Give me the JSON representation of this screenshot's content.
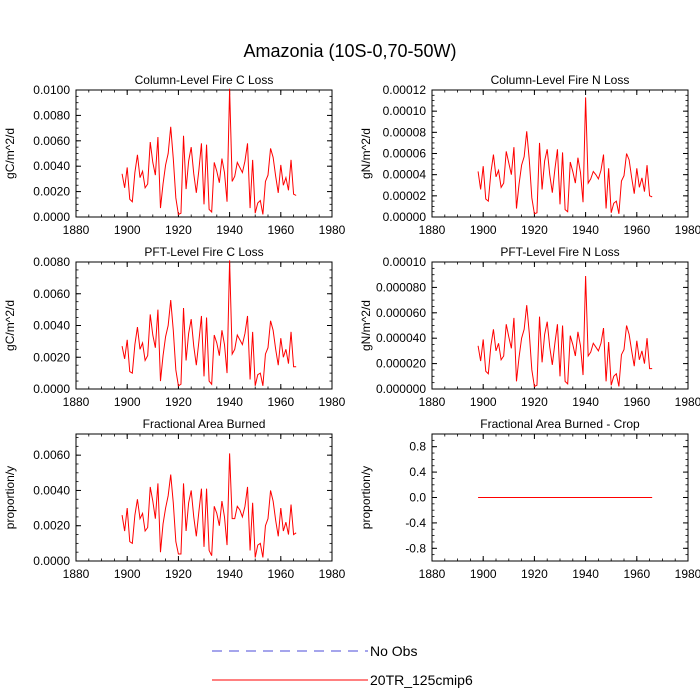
{
  "figure": {
    "title": "Amazonia (10S-0,70-50W)",
    "series_color": "#ff0000",
    "obs_color": "#4b4bd8"
  },
  "legend": {
    "items": [
      {
        "label": "No Obs",
        "style": "dashed",
        "color": "#4b4bd8"
      },
      {
        "label": "20TR_125cmip6",
        "style": "solid",
        "color": "#ff0000"
      }
    ]
  },
  "chart_data": [
    {
      "type": "line",
      "title": "Column-Level Fire C Loss",
      "xlabel": "",
      "ylabel": "gC/m^2/d",
      "xlim": [
        1880,
        1980
      ],
      "ylim": [
        0,
        0.01
      ],
      "xticks": [
        "1880",
        "1900",
        "1920",
        "1940",
        "1960",
        "1980"
      ],
      "yticks": [
        "0.0000",
        "0.0020",
        "0.0040",
        "0.0060",
        "0.0080",
        "0.0100"
      ],
      "x": [
        1898,
        1899,
        1900,
        1901,
        1902,
        1903,
        1904,
        1905,
        1906,
        1907,
        1908,
        1909,
        1910,
        1911,
        1912,
        1913,
        1914,
        1915,
        1916,
        1917,
        1918,
        1919,
        1920,
        1921,
        1922,
        1923,
        1924,
        1925,
        1926,
        1927,
        1928,
        1929,
        1930,
        1931,
        1932,
        1933,
        1934,
        1935,
        1936,
        1937,
        1938,
        1939,
        1940,
        1941,
        1942,
        1943,
        1944,
        1945,
        1946,
        1947,
        1948,
        1949,
        1950,
        1951,
        1952,
        1953,
        1954,
        1955,
        1956,
        1957,
        1958,
        1959,
        1960,
        1961,
        1962,
        1963,
        1964,
        1965,
        1966
      ],
      "series": [
        {
          "name": "20TR_125cmip6",
          "values": [
            0.0034,
            0.0023,
            0.0039,
            0.0014,
            0.0012,
            0.0035,
            0.0049,
            0.0031,
            0.0036,
            0.0023,
            0.0026,
            0.0059,
            0.0043,
            0.0033,
            0.0063,
            0.0007,
            0.0026,
            0.0041,
            0.005,
            0.0071,
            0.0046,
            0.0015,
            0.0002,
            0.0003,
            0.0064,
            0.0022,
            0.0044,
            0.0055,
            0.0034,
            0.0019,
            0.0037,
            0.0058,
            0.001,
            0.0057,
            0.0006,
            0.0004,
            0.0043,
            0.0036,
            0.0027,
            0.0046,
            0.0035,
            0.0012,
            0.0101,
            0.0028,
            0.0032,
            0.0043,
            0.0039,
            0.0035,
            0.0044,
            0.0058,
            0.0007,
            0.0045,
            0.0003,
            0.0011,
            0.0013,
            0.0002,
            0.0028,
            0.0033,
            0.0054,
            0.0047,
            0.0032,
            0.0019,
            0.0041,
            0.0025,
            0.0031,
            0.0021,
            0.0045,
            0.0018,
            0.0017
          ]
        }
      ]
    },
    {
      "type": "line",
      "title": "Column-Level Fire N Loss",
      "xlabel": "",
      "ylabel": "gN/m^2/d",
      "xlim": [
        1880,
        1980
      ],
      "ylim": [
        0,
        0.00012
      ],
      "xticks": [
        "1880",
        "1900",
        "1920",
        "1940",
        "1960",
        "1980"
      ],
      "yticks": [
        "0.00000",
        "0.00002",
        "0.00004",
        "0.00006",
        "0.00008",
        "0.00010",
        "0.00012"
      ],
      "x": [
        1898,
        1899,
        1900,
        1901,
        1902,
        1903,
        1904,
        1905,
        1906,
        1907,
        1908,
        1909,
        1910,
        1911,
        1912,
        1913,
        1914,
        1915,
        1916,
        1917,
        1918,
        1919,
        1920,
        1921,
        1922,
        1923,
        1924,
        1925,
        1926,
        1927,
        1928,
        1929,
        1930,
        1931,
        1932,
        1933,
        1934,
        1935,
        1936,
        1937,
        1938,
        1939,
        1940,
        1941,
        1942,
        1943,
        1944,
        1945,
        1946,
        1947,
        1948,
        1949,
        1950,
        1951,
        1952,
        1953,
        1954,
        1955,
        1956,
        1957,
        1958,
        1959,
        1960,
        1961,
        1962,
        1963,
        1964,
        1965,
        1966
      ],
      "series": [
        {
          "name": "20TR_125cmip6",
          "values": [
            4.3e-05,
            2.6e-05,
            4.8e-05,
            1.7e-05,
            1.5e-05,
            4.2e-05,
            5.9e-05,
            3.8e-05,
            4.4e-05,
            2.8e-05,
            3.2e-05,
            6.2e-05,
            5.1e-05,
            4e-05,
            6.6e-05,
            8e-06,
            3.1e-05,
            4.9e-05,
            5.7e-05,
            8.1e-05,
            5.4e-05,
            1.8e-05,
            3e-06,
            4e-06,
            7e-05,
            2.6e-05,
            5.3e-05,
            6.4e-05,
            4e-05,
            2.3e-05,
            4.5e-05,
            6.4e-05,
            1.2e-05,
            6.1e-05,
            7e-06,
            5e-06,
            5.2e-05,
            4.3e-05,
            3.2e-05,
            5.6e-05,
            4.2e-05,
            1.4e-05,
            0.000113,
            3.2e-05,
            3.6e-05,
            4.3e-05,
            4e-05,
            3.6e-05,
            4.4e-05,
            5.9e-05,
            8e-06,
            4.6e-05,
            4e-06,
            1.3e-05,
            1.5e-05,
            3e-06,
            3.4e-05,
            3.9e-05,
            6e-05,
            5.4e-05,
            3.7e-05,
            2.2e-05,
            4.6e-05,
            2.8e-05,
            3.7e-05,
            2.4e-05,
            4.9e-05,
            2e-05,
            1.9e-05
          ]
        }
      ]
    },
    {
      "type": "line",
      "title": "PFT-Level Fire C Loss",
      "xlabel": "",
      "ylabel": "gC/m^2/d",
      "xlim": [
        1880,
        1980
      ],
      "ylim": [
        0,
        0.008
      ],
      "xticks": [
        "1880",
        "1900",
        "1920",
        "1940",
        "1960",
        "1980"
      ],
      "yticks": [
        "0.0000",
        "0.0020",
        "0.0040",
        "0.0060",
        "0.0080"
      ],
      "x": [
        1898,
        1899,
        1900,
        1901,
        1902,
        1903,
        1904,
        1905,
        1906,
        1907,
        1908,
        1909,
        1910,
        1911,
        1912,
        1913,
        1914,
        1915,
        1916,
        1917,
        1918,
        1919,
        1920,
        1921,
        1922,
        1923,
        1924,
        1925,
        1926,
        1927,
        1928,
        1929,
        1930,
        1931,
        1932,
        1933,
        1934,
        1935,
        1936,
        1937,
        1938,
        1939,
        1940,
        1941,
        1942,
        1943,
        1944,
        1945,
        1946,
        1947,
        1948,
        1949,
        1950,
        1951,
        1952,
        1953,
        1954,
        1955,
        1956,
        1957,
        1958,
        1959,
        1960,
        1961,
        1962,
        1963,
        1964,
        1965,
        1966
      ],
      "series": [
        {
          "name": "20TR_125cmip6",
          "values": [
            0.0027,
            0.0019,
            0.0031,
            0.0011,
            0.001,
            0.0028,
            0.0039,
            0.0025,
            0.0029,
            0.0018,
            0.0021,
            0.0047,
            0.0034,
            0.0026,
            0.005,
            0.0005,
            0.0021,
            0.0033,
            0.004,
            0.0056,
            0.0037,
            0.0012,
            0.0002,
            0.0003,
            0.0051,
            0.0018,
            0.0035,
            0.0044,
            0.0027,
            0.0015,
            0.003,
            0.0046,
            0.0008,
            0.0045,
            0.0005,
            0.0003,
            0.0034,
            0.0029,
            0.0021,
            0.0037,
            0.0028,
            0.001,
            0.0081,
            0.0022,
            0.0025,
            0.0034,
            0.0031,
            0.0028,
            0.0035,
            0.0046,
            0.0006,
            0.0036,
            0.0002,
            0.0009,
            0.001,
            0.0002,
            0.0022,
            0.0026,
            0.0043,
            0.0037,
            0.0025,
            0.0015,
            0.0032,
            0.002,
            0.0025,
            0.0016,
            0.0036,
            0.0014,
            0.0014
          ]
        }
      ]
    },
    {
      "type": "line",
      "title": "PFT-Level Fire N Loss",
      "xlabel": "",
      "ylabel": "gN/m^2/d",
      "xlim": [
        1880,
        1980
      ],
      "ylim": [
        0,
        0.0001
      ],
      "xticks": [
        "1880",
        "1900",
        "1920",
        "1940",
        "1960",
        "1980"
      ],
      "yticks": [
        "0.000000",
        "0.000020",
        "0.000040",
        "0.000060",
        "0.000080",
        "0.00010"
      ],
      "x": [
        1898,
        1899,
        1900,
        1901,
        1902,
        1903,
        1904,
        1905,
        1906,
        1907,
        1908,
        1909,
        1910,
        1911,
        1912,
        1913,
        1914,
        1915,
        1916,
        1917,
        1918,
        1919,
        1920,
        1921,
        1922,
        1923,
        1924,
        1925,
        1926,
        1927,
        1928,
        1929,
        1930,
        1931,
        1932,
        1933,
        1934,
        1935,
        1936,
        1937,
        1938,
        1939,
        1940,
        1941,
        1942,
        1943,
        1944,
        1945,
        1946,
        1947,
        1948,
        1949,
        1950,
        1951,
        1952,
        1953,
        1954,
        1955,
        1956,
        1957,
        1958,
        1959,
        1960,
        1961,
        1962,
        1963,
        1964,
        1965,
        1966
      ],
      "series": [
        {
          "name": "20TR_125cmip6",
          "values": [
            3.4e-05,
            2.2e-05,
            3.9e-05,
            1.4e-05,
            1.2e-05,
            3.4e-05,
            4.7e-05,
            3e-05,
            3.6e-05,
            2.3e-05,
            2.6e-05,
            5.1e-05,
            4.1e-05,
            3.2e-05,
            5.6e-05,
            6e-06,
            2.5e-05,
            4e-05,
            4.7e-05,
            6.6e-05,
            4.4e-05,
            1.5e-05,
            2e-06,
            3e-06,
            5.7e-05,
            2.1e-05,
            4.3e-05,
            5.3e-05,
            3.3e-05,
            1.9e-05,
            3.6e-05,
            5.1e-05,
            1e-05,
            5e-05,
            6e-06,
            4e-06,
            4.2e-05,
            3.5e-05,
            2.6e-05,
            4.5e-05,
            3.4e-05,
            1.1e-05,
            8.9e-05,
            2.6e-05,
            2.9e-05,
            3.6e-05,
            3.3e-05,
            3e-05,
            3.6e-05,
            4.8e-05,
            6e-06,
            3.7e-05,
            3e-06,
            1e-05,
            1.2e-05,
            2e-06,
            2.7e-05,
            3.1e-05,
            5e-05,
            4.3e-05,
            3e-05,
            1.8e-05,
            3.8e-05,
            2.3e-05,
            3e-05,
            2e-05,
            4e-05,
            1.6e-05,
            1.6e-05
          ]
        }
      ]
    },
    {
      "type": "line",
      "title": "Fractional Area Burned",
      "xlabel": "",
      "ylabel": "proportion/y",
      "xlim": [
        1880,
        1980
      ],
      "ylim": [
        0,
        0.0072
      ],
      "xticks": [
        "1880",
        "1900",
        "1920",
        "1940",
        "1960",
        "1980"
      ],
      "yticks": [
        "0.0000",
        "0.0020",
        "0.0040",
        "0.0060"
      ],
      "x": [
        1898,
        1899,
        1900,
        1901,
        1902,
        1903,
        1904,
        1905,
        1906,
        1907,
        1908,
        1909,
        1910,
        1911,
        1912,
        1913,
        1914,
        1915,
        1916,
        1917,
        1918,
        1919,
        1920,
        1921,
        1922,
        1923,
        1924,
        1925,
        1926,
        1927,
        1928,
        1929,
        1930,
        1931,
        1932,
        1933,
        1934,
        1935,
        1936,
        1937,
        1938,
        1939,
        1940,
        1941,
        1942,
        1943,
        1944,
        1945,
        1946,
        1947,
        1948,
        1949,
        1950,
        1951,
        1952,
        1953,
        1954,
        1955,
        1956,
        1957,
        1958,
        1959,
        1960,
        1961,
        1962,
        1963,
        1964,
        1965,
        1966
      ],
      "series": [
        {
          "name": "20TR_125cmip6",
          "values": [
            0.0026,
            0.0017,
            0.003,
            0.0011,
            0.001,
            0.0026,
            0.0035,
            0.0024,
            0.0027,
            0.0017,
            0.0019,
            0.0042,
            0.0034,
            0.0024,
            0.0044,
            0.0005,
            0.0021,
            0.003,
            0.0037,
            0.0049,
            0.0033,
            0.0011,
            0.0004,
            0.0004,
            0.0044,
            0.0017,
            0.0033,
            0.004,
            0.0025,
            0.0014,
            0.0028,
            0.0041,
            0.0008,
            0.0041,
            0.0006,
            0.0003,
            0.0031,
            0.0027,
            0.002,
            0.0034,
            0.0025,
            0.0009,
            0.0061,
            0.0024,
            0.0024,
            0.0031,
            0.0029,
            0.0025,
            0.0031,
            0.0042,
            0.0006,
            0.0033,
            0.0002,
            0.0009,
            0.001,
            0.0002,
            0.002,
            0.0024,
            0.004,
            0.0034,
            0.0023,
            0.0014,
            0.003,
            0.0017,
            0.0022,
            0.0015,
            0.0032,
            0.0015,
            0.0016
          ]
        }
      ]
    },
    {
      "type": "line",
      "title": "Fractional Area Burned - Crop",
      "xlabel": "",
      "ylabel": "proportion/y",
      "xlim": [
        1880,
        1980
      ],
      "ylim": [
        -1.0,
        1.0
      ],
      "xticks": [
        "1880",
        "1900",
        "1920",
        "1940",
        "1960",
        "1980"
      ],
      "yticks": [
        "-0.8",
        "-0.4",
        "0.0",
        "0.4",
        "0.8"
      ],
      "x": [
        1898,
        1966
      ],
      "series": [
        {
          "name": "20TR_125cmip6",
          "values": [
            0.0,
            0.0
          ]
        }
      ]
    }
  ]
}
